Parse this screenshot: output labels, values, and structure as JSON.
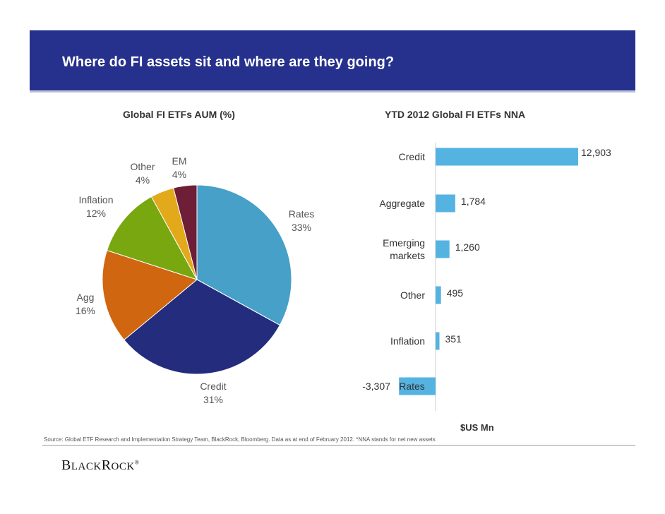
{
  "header": {
    "title": "Where do FI assets sit and where are they going?"
  },
  "footer": {
    "source": "Source: Global ETF Research and Implementation Strategy Team, BlackRock, Bloomberg. Data as at  end of February 2012. *NNA stands for net new assets",
    "logo": "BLACKROCK"
  },
  "chart_data": [
    {
      "type": "pie",
      "title": "Global FI ETFs AUM (%)",
      "slices": [
        {
          "name": "Rates",
          "label": "Rates",
          "pct_label": "33%",
          "value": 33,
          "color": "#46a0c8"
        },
        {
          "name": "Credit",
          "label": "Credit",
          "pct_label": "31%",
          "value": 31,
          "color": "#232c7d"
        },
        {
          "name": "Agg",
          "label": "Agg",
          "pct_label": "16%",
          "value": 16,
          "color": "#d0660f"
        },
        {
          "name": "Inflation",
          "label": "Inflation",
          "pct_label": "12%",
          "value": 12,
          "color": "#78a70f"
        },
        {
          "name": "Other",
          "label": "Other",
          "pct_label": "4%",
          "value": 4,
          "color": "#e2a91b"
        },
        {
          "name": "EM",
          "label": "EM",
          "pct_label": "4%",
          "value": 4,
          "color": "#6e1e36"
        }
      ],
      "start_angle_deg": 0,
      "direction": "clockwise"
    },
    {
      "type": "bar",
      "orientation": "horizontal",
      "title": "YTD 2012 Global FI ETFs NNA",
      "xlabel": "$US Mn",
      "categories": [
        "Credit",
        "Aggregate",
        "Emerging markets",
        "Other",
        "Inflation",
        "Rates"
      ],
      "category_lines": [
        [
          "Credit"
        ],
        [
          "Aggregate"
        ],
        [
          "Emerging",
          "markets"
        ],
        [
          "Other"
        ],
        [
          "Inflation"
        ],
        [
          "Rates"
        ]
      ],
      "values": [
        12903,
        1784,
        1260,
        495,
        351,
        -3307
      ],
      "value_labels": [
        "12,903",
        "1,784",
        "1,260",
        "495",
        "351",
        "-3,307"
      ],
      "color": "#55b3e2",
      "xlim": [
        -3307,
        12903
      ]
    }
  ]
}
